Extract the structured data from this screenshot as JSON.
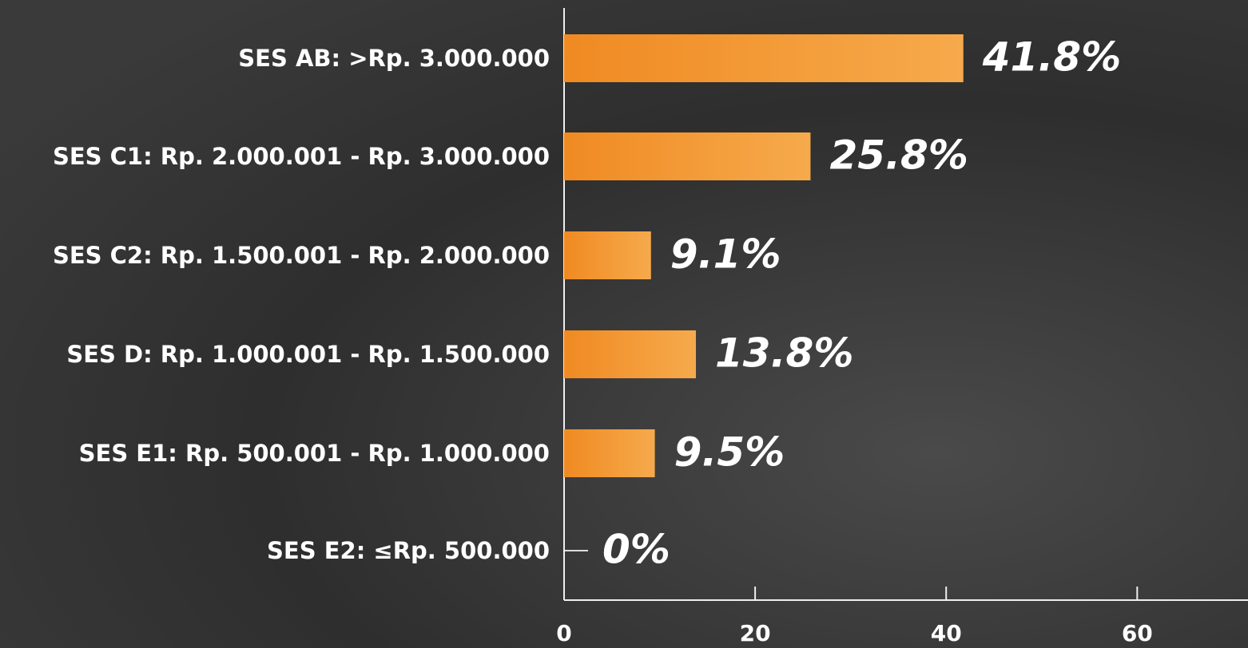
{
  "chart_data": {
    "type": "hbar",
    "categories": [
      "SES AB: >Rp. 3.000.000",
      "SES C1: Rp. 2.000.001 - Rp. 3.000.000",
      "SES C2: Rp. 1.500.001 - Rp. 2.000.000",
      "SES D: Rp. 1.000.001 - Rp. 1.500.000",
      "SES E1: Rp. 500.001 - Rp. 1.000.000",
      "SES E2: ≤Rp. 500.000"
    ],
    "values": [
      41.8,
      25.8,
      9.1,
      13.8,
      9.5,
      0
    ],
    "value_labels": [
      "41.8%",
      "25.8%",
      "9.1%",
      "13.8%",
      "9.5%",
      "0%"
    ],
    "color": "#f28c28",
    "xlim": [
      0,
      71.6
    ],
    "xticks": [
      0,
      20,
      40,
      60
    ]
  }
}
